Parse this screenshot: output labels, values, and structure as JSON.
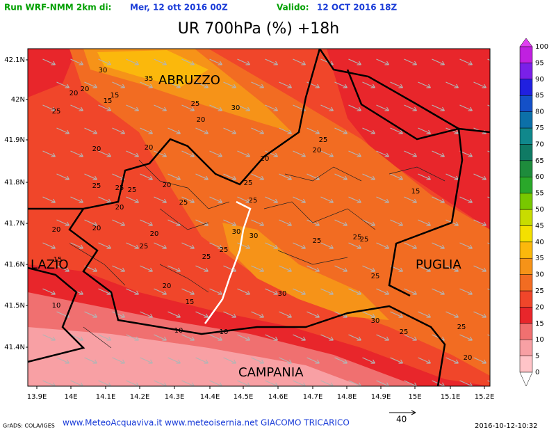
{
  "header": {
    "run_label": "Run WRF-NMM 2km di:",
    "run_date": "Mer, 12 ott 2016 00Z",
    "valid_label": "Valido:",
    "valid_date": "12 OCT 2016 18Z"
  },
  "title": "UR 700hPa (%) +18h",
  "map": {
    "lat_labels": [
      "42.1N",
      "42N",
      "41.9N",
      "41.8N",
      "41.7N",
      "41.6N",
      "41.5N",
      "41.4N"
    ],
    "lon_labels": [
      "13.9E",
      "14E",
      "14.1E",
      "14.2E",
      "14.3E",
      "14.4E",
      "14.5E",
      "14.6E",
      "14.7E",
      "14.8E",
      "14.9E",
      "15E",
      "15.1E",
      "15.2E"
    ],
    "regions": [
      "ABRUZZO",
      "LAZIO",
      "PUGLIA",
      "CAMPANIA"
    ],
    "contour_labels": [
      30,
      35,
      20,
      20,
      15,
      15,
      25,
      25,
      30,
      20,
      20,
      20,
      25,
      20,
      20,
      25,
      25,
      25,
      20,
      25,
      15,
      20,
      25,
      25,
      20,
      20,
      20,
      30,
      30,
      25,
      25,
      25,
      25,
      25,
      25,
      15,
      25,
      20,
      30,
      15,
      10,
      30,
      25,
      25,
      10,
      10,
      20
    ]
  },
  "colorbar": {
    "ticks": [
      0,
      5,
      10,
      15,
      20,
      25,
      30,
      35,
      40,
      45,
      50,
      55,
      60,
      65,
      70,
      75,
      80,
      85,
      90,
      95,
      100
    ],
    "colors": [
      "#ffc4c8",
      "#f8a0a4",
      "#f07070",
      "#e8262b",
      "#f0462a",
      "#f26c22",
      "#f69318",
      "#fbb80c",
      "#f4e000",
      "#c8dc00",
      "#78c800",
      "#2aa82a",
      "#1e8c3c",
      "#0f7a64",
      "#10888c",
      "#0c70a8",
      "#1450c8",
      "#2020e0",
      "#7a20e8",
      "#c020e0"
    ]
  },
  "footer": {
    "credits": "GrADS: COLA/IGES",
    "sites": "www.MeteoAcquaviva.it www.meteoisernia.net GIACOMO TRICARICO",
    "vector_scale": "40",
    "timestamp": "2016-10-12-10:32"
  }
}
